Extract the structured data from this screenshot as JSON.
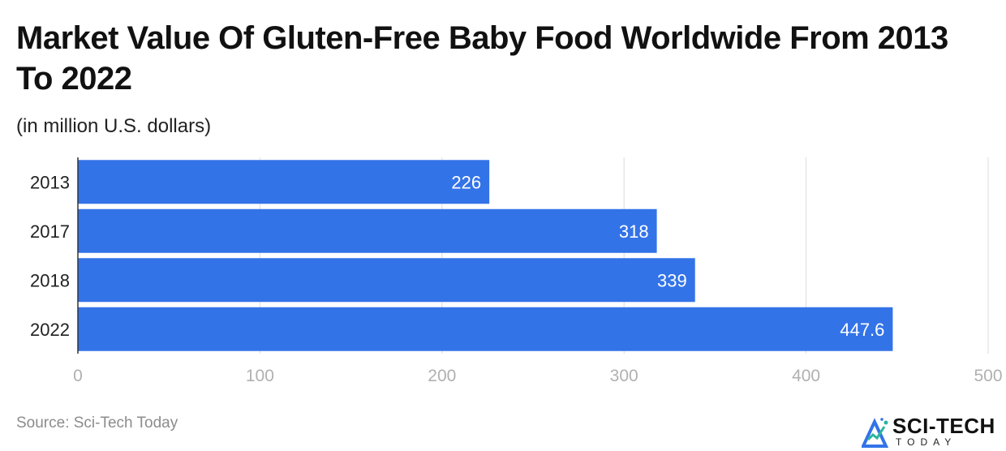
{
  "chart_data": {
    "type": "bar",
    "orientation": "horizontal",
    "title": "Market Value Of Gluten-Free Baby Food Worldwide From 2013 To 2022",
    "subtitle": "(in million U.S. dollars)",
    "categories": [
      "2013",
      "2017",
      "2018",
      "2022"
    ],
    "values": [
      226,
      318,
      339,
      447.6
    ],
    "value_labels": [
      "226",
      "318",
      "339",
      "447.6"
    ],
    "xlim": [
      0,
      500
    ],
    "x_ticks": [
      0,
      100,
      200,
      300,
      400,
      500
    ],
    "grid": true,
    "bar_color": "#3373E8",
    "label_color": "#ffffff",
    "tick_color": "#b0b0b0",
    "grid_color": "#dcdcdc"
  },
  "source": "Source: Sci-Tech Today",
  "logo": {
    "main": "SCI-TECH",
    "sub": "TODAY",
    "mark_icon": "mountain-chart-icon",
    "mark_color": "#3373E8",
    "accent_color": "#2bb5a0"
  }
}
